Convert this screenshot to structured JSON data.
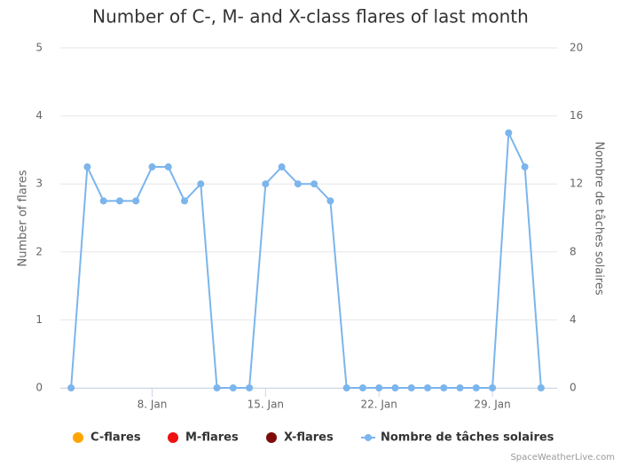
{
  "chart_data": {
    "type": "line",
    "title": "Number of C-, M- and X-class flares of last month",
    "ylabel": "Number of flares",
    "y2label": "Nombre de tâches solaires",
    "credit": "SpaceWeatherLive.com",
    "categories": [
      null,
      null,
      null,
      null,
      null,
      "8. Jan",
      null,
      null,
      null,
      null,
      null,
      null,
      "15. Jan",
      null,
      null,
      null,
      null,
      null,
      null,
      "22. Jan",
      null,
      null,
      null,
      null,
      null,
      null,
      "29. Jan",
      null,
      null,
      null
    ],
    "series": [
      {
        "name": "C-flares",
        "color": "#ffa500",
        "values": [
          null,
          null,
          null,
          null,
          null,
          null,
          null,
          null,
          null,
          null,
          null,
          null,
          null,
          null,
          null,
          null,
          null,
          null,
          null,
          null,
          null,
          null,
          null,
          null,
          null,
          null,
          null,
          null,
          null,
          null
        ]
      },
      {
        "name": "M-flares",
        "color": "#ee1111",
        "values": [
          null,
          null,
          null,
          null,
          null,
          null,
          null,
          null,
          null,
          null,
          null,
          null,
          null,
          null,
          null,
          null,
          null,
          null,
          null,
          null,
          null,
          null,
          null,
          null,
          null,
          null,
          null,
          null,
          null,
          null
        ]
      },
      {
        "name": "X-flares",
        "color": "#7f0a0a",
        "values": [
          null,
          null,
          null,
          null,
          null,
          null,
          null,
          null,
          null,
          null,
          null,
          null,
          null,
          null,
          null,
          null,
          null,
          null,
          null,
          null,
          null,
          null,
          null,
          null,
          null,
          null,
          null,
          null,
          null,
          null
        ]
      },
      {
        "name": "Nombre de tâches solaires",
        "color": "#7cb5ec",
        "axis": "y2",
        "values": [
          0,
          13,
          11,
          11,
          11,
          13,
          13,
          11,
          12,
          0,
          0,
          0,
          12,
          13,
          12,
          12,
          11,
          0,
          0,
          0,
          0,
          0,
          0,
          0,
          0,
          0,
          0,
          15,
          13,
          0
        ]
      }
    ],
    "ylim": [
      0,
      5
    ],
    "yticks": [
      0,
      1,
      2,
      3,
      4,
      5
    ],
    "y2lim": [
      0,
      20
    ],
    "y2ticks": [
      0,
      4,
      8,
      12,
      16,
      20
    ],
    "grid": true,
    "legend": "bottom"
  }
}
